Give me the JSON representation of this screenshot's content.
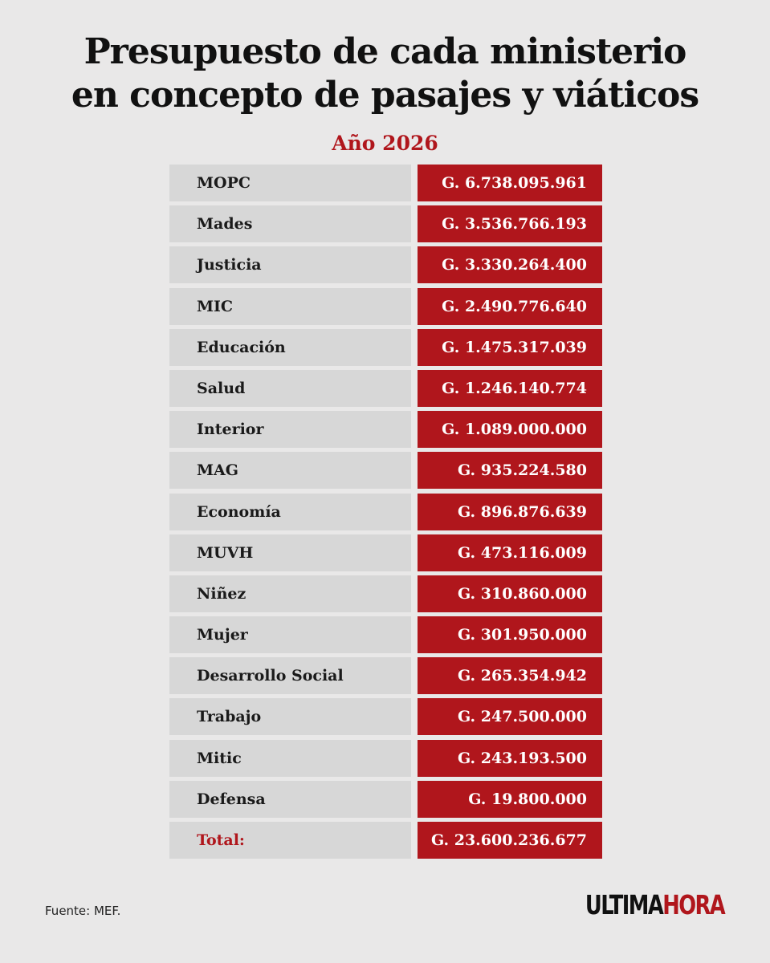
{
  "title": {
    "line1": "Presupuesto de cada ministerio",
    "line2": "en concepto de pasajes y viáticos"
  },
  "subtitle": "Año 2026",
  "chart_data": {
    "type": "table",
    "title": "Presupuesto de cada ministerio en concepto de pasajes y viáticos",
    "subtitle": "Año 2026",
    "columns": [
      "",
      ""
    ],
    "rows": [
      {
        "name": "MOPC",
        "value_label": "G. 6.738.095.961",
        "value": 6738095961
      },
      {
        "name": "Mades",
        "value_label": "G. 3.536.766.193",
        "value": 3536766193
      },
      {
        "name": "Justicia",
        "value_label": "G. 3.330.264.400",
        "value": 3330264400
      },
      {
        "name": "MIC",
        "value_label": "G. 2.490.776.640",
        "value": 2490776640
      },
      {
        "name": "Educación",
        "value_label": "G. 1.475.317.039",
        "value": 1475317039
      },
      {
        "name": "Salud",
        "value_label": "G. 1.246.140.774",
        "value": 1246140774
      },
      {
        "name": "Interior",
        "value_label": "G. 1.089.000.000",
        "value": 1089000000
      },
      {
        "name": "MAG",
        "value_label": "G. 935.224.580",
        "value": 935224580
      },
      {
        "name": "Economía",
        "value_label": "G. 896.876.639",
        "value": 896876639
      },
      {
        "name": "MUVH",
        "value_label": "G. 473.116.009",
        "value": 473116009
      },
      {
        "name": "Niñez",
        "value_label": "G. 310.860.000",
        "value": 310860000
      },
      {
        "name": "Mujer",
        "value_label": "G. 301.950.000",
        "value": 301950000
      },
      {
        "name": "Desarrollo Social",
        "value_label": "G. 265.354.942",
        "value": 265354942
      },
      {
        "name": "Trabajo",
        "value_label": "G. 247.500.000",
        "value": 247500000
      },
      {
        "name": "Mitic",
        "value_label": "G. 243.193.500",
        "value": 243193500
      },
      {
        "name": "Defensa",
        "value_label": "G. 19.800.000",
        "value": 19800000
      }
    ],
    "total": {
      "name": "Total:",
      "value_label": "G. 23.600.236.677",
      "value": 23600236677
    }
  },
  "source": "Fuente: MEF.",
  "logo": {
    "part1": "ULTIMA",
    "part2": "HORA"
  },
  "colors": {
    "background": "#e9e8e8",
    "accent_red": "#b0161c",
    "row_gray": "#d7d7d7",
    "text_dark": "#1a1a1a"
  }
}
